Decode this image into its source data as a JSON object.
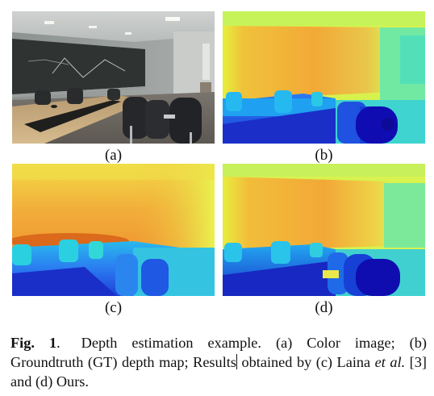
{
  "figure": {
    "panels": [
      {
        "id": "a",
        "label": "(a)",
        "content": "Color image",
        "kind": "color-photo"
      },
      {
        "id": "b",
        "label": "(b)",
        "content": "Groundtruth (GT) depth map",
        "kind": "depth-map"
      },
      {
        "id": "c",
        "label": "(c)",
        "content": "Laina et al. [3]",
        "kind": "depth-map"
      },
      {
        "id": "d",
        "label": "(d)",
        "content": "Ours",
        "kind": "depth-map"
      }
    ],
    "colormap": [
      "#1510a8",
      "#1f8ff0",
      "#3fe6c0",
      "#e2f53a",
      "#f2ad3a",
      "#ec7a1c",
      "#c04510"
    ]
  },
  "caption": {
    "label": "Fig. 1",
    "period": ".",
    "seg1": "Depth estimation example.",
    "seg2": "(a) Color image; (b) Groundtruth (GT) depth map; Results",
    "seg3": "obtained by (c) Laina ",
    "seg4": "et al.",
    "seg5": " [3] and (d) Ours."
  }
}
